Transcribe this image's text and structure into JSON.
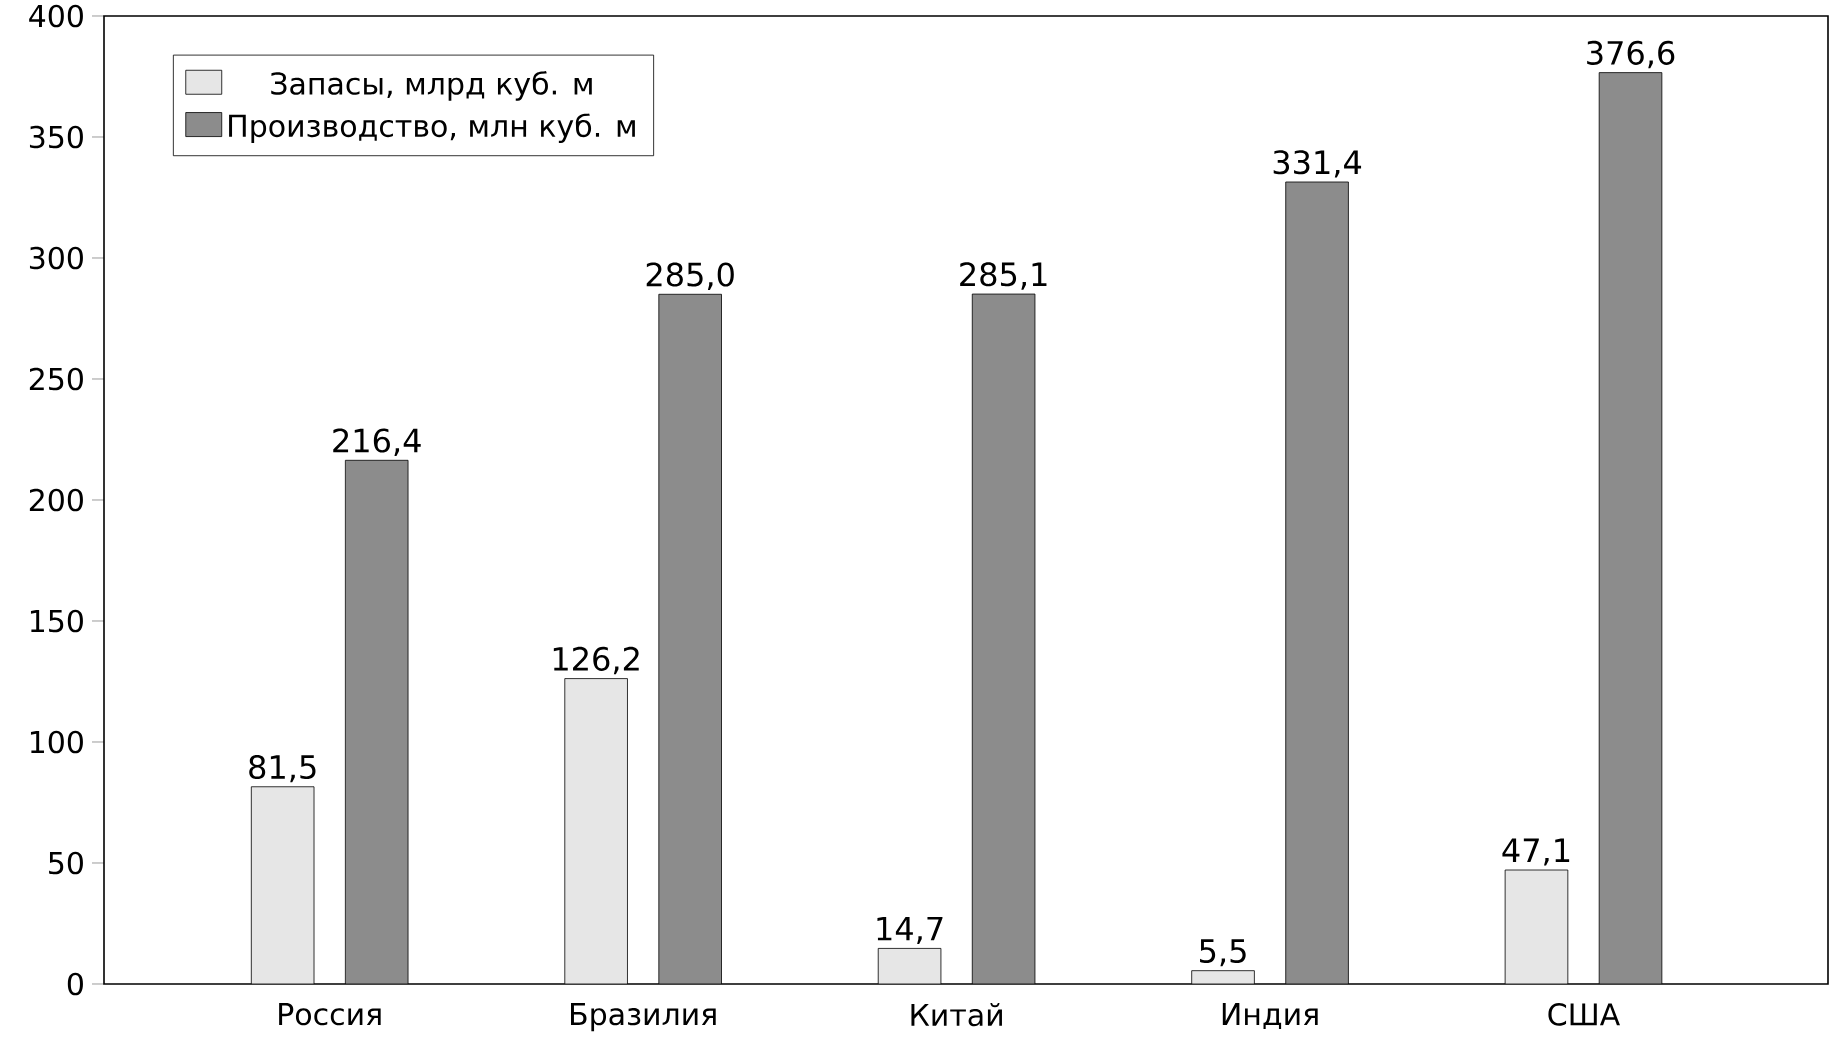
{
  "chart_data": {
    "type": "bar",
    "categories": [
      "Россия",
      "Бразилия",
      "Китай",
      "Индия",
      "США"
    ],
    "series": [
      {
        "name": "Запасы, млрд куб. м",
        "color": "#e6e6e6",
        "values": [
          81.5,
          126.2,
          14.7,
          5.5,
          47.1
        ],
        "value_labels": [
          "81,5",
          "126,2",
          "14,7",
          "5,5",
          "47,1"
        ]
      },
      {
        "name": "Производство, млн куб. м",
        "color": "#8c8c8c",
        "values": [
          216.4,
          285.0,
          285.1,
          331.4,
          376.6
        ],
        "value_labels": [
          "216,4",
          "285,0",
          "285,1",
          "331,4",
          "376,6"
        ]
      }
    ],
    "ylim": [
      0,
      400
    ],
    "yticks": [
      0,
      50,
      100,
      150,
      200,
      250,
      300,
      350,
      400
    ],
    "legend": "top left",
    "grid": false
  }
}
